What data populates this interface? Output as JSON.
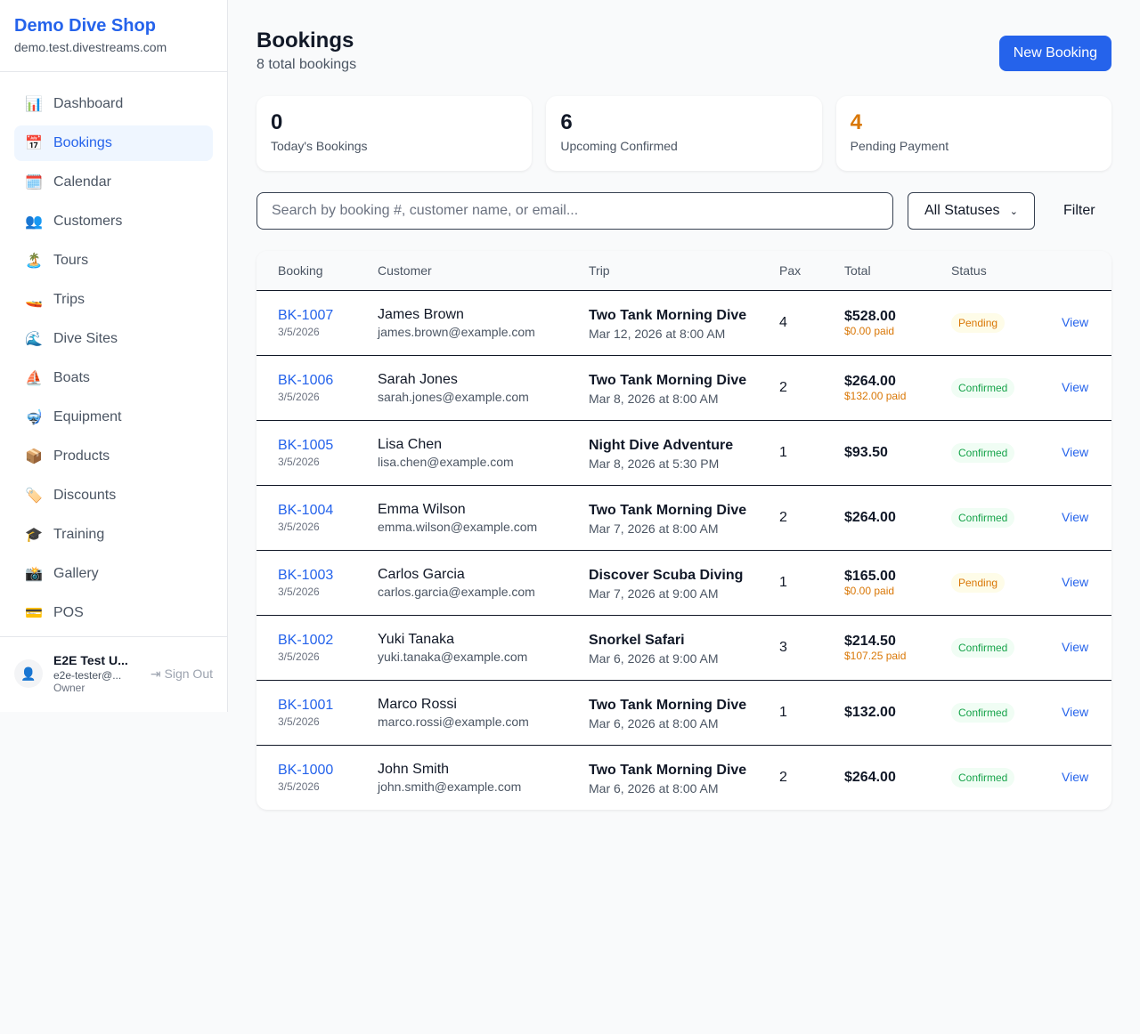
{
  "sidebar": {
    "brand": "Demo Dive Shop",
    "url": "demo.test.divestreams.com",
    "items": [
      {
        "label": "Dashboard",
        "icon": "📊",
        "active": false
      },
      {
        "label": "Bookings",
        "icon": "📅",
        "active": true
      },
      {
        "label": "Calendar",
        "icon": "🗓️",
        "active": false
      },
      {
        "label": "Customers",
        "icon": "👥",
        "active": false
      },
      {
        "label": "Tours",
        "icon": "🏝️",
        "active": false
      },
      {
        "label": "Trips",
        "icon": "🚤",
        "active": false
      },
      {
        "label": "Dive Sites",
        "icon": "🌊",
        "active": false
      },
      {
        "label": "Boats",
        "icon": "⛵",
        "active": false
      },
      {
        "label": "Equipment",
        "icon": "🤿",
        "active": false
      },
      {
        "label": "Products",
        "icon": "📦",
        "active": false
      },
      {
        "label": "Discounts",
        "icon": "🏷️",
        "active": false
      },
      {
        "label": "Training",
        "icon": "🎓",
        "active": false
      },
      {
        "label": "Gallery",
        "icon": "📸",
        "active": false
      },
      {
        "label": "POS",
        "icon": "💳",
        "active": false
      }
    ],
    "user": {
      "name": "E2E Test U...",
      "email": "e2e-tester@...",
      "role": "Owner",
      "sign_out": "Sign Out"
    }
  },
  "header": {
    "title": "Bookings",
    "subtitle": "8 total bookings",
    "new_button": "New Booking"
  },
  "stats": [
    {
      "value": "0",
      "label": "Today's Bookings",
      "color": "#111827"
    },
    {
      "value": "6",
      "label": "Upcoming Confirmed",
      "color": "#111827"
    },
    {
      "value": "4",
      "label": "Pending Payment",
      "color": "#d97706"
    }
  ],
  "filters": {
    "search_placeholder": "Search by booking #, customer name, or email...",
    "status": "All Statuses",
    "filter_button": "Filter"
  },
  "table": {
    "columns": [
      "Booking",
      "Customer",
      "Trip",
      "Pax",
      "Total",
      "Status",
      ""
    ],
    "rows": [
      {
        "id": "BK-1007",
        "date": "3/5/2026",
        "name": "James Brown",
        "email": "james.brown@example.com",
        "trip": "Two Tank Morning Dive",
        "trip_date": "Mar 12, 2026 at 8:00 AM",
        "pax": "4",
        "total": "$528.00",
        "paid": "$0.00 paid",
        "status": "Pending",
        "action": "View"
      },
      {
        "id": "BK-1006",
        "date": "3/5/2026",
        "name": "Sarah Jones",
        "email": "sarah.jones@example.com",
        "trip": "Two Tank Morning Dive",
        "trip_date": "Mar 8, 2026 at 8:00 AM",
        "pax": "2",
        "total": "$264.00",
        "paid": "$132.00 paid",
        "status": "Confirmed",
        "action": "View"
      },
      {
        "id": "BK-1005",
        "date": "3/5/2026",
        "name": "Lisa Chen",
        "email": "lisa.chen@example.com",
        "trip": "Night Dive Adventure",
        "trip_date": "Mar 8, 2026 at 5:30 PM",
        "pax": "1",
        "total": "$93.50",
        "paid": "",
        "status": "Confirmed",
        "action": "View"
      },
      {
        "id": "BK-1004",
        "date": "3/5/2026",
        "name": "Emma Wilson",
        "email": "emma.wilson@example.com",
        "trip": "Two Tank Morning Dive",
        "trip_date": "Mar 7, 2026 at 8:00 AM",
        "pax": "2",
        "total": "$264.00",
        "paid": "",
        "status": "Confirmed",
        "action": "View"
      },
      {
        "id": "BK-1003",
        "date": "3/5/2026",
        "name": "Carlos Garcia",
        "email": "carlos.garcia@example.com",
        "trip": "Discover Scuba Diving",
        "trip_date": "Mar 7, 2026 at 9:00 AM",
        "pax": "1",
        "total": "$165.00",
        "paid": "$0.00 paid",
        "status": "Pending",
        "action": "View"
      },
      {
        "id": "BK-1002",
        "date": "3/5/2026",
        "name": "Yuki Tanaka",
        "email": "yuki.tanaka@example.com",
        "trip": "Snorkel Safari",
        "trip_date": "Mar 6, 2026 at 9:00 AM",
        "pax": "3",
        "total": "$214.50",
        "paid": "$107.25 paid",
        "status": "Confirmed",
        "action": "View"
      },
      {
        "id": "BK-1001",
        "date": "3/5/2026",
        "name": "Marco Rossi",
        "email": "marco.rossi@example.com",
        "trip": "Two Tank Morning Dive",
        "trip_date": "Mar 6, 2026 at 8:00 AM",
        "pax": "1",
        "total": "$132.00",
        "paid": "",
        "status": "Confirmed",
        "action": "View"
      },
      {
        "id": "BK-1000",
        "date": "3/5/2026",
        "name": "John Smith",
        "email": "john.smith@example.com",
        "trip": "Two Tank Morning Dive",
        "trip_date": "Mar 6, 2026 at 8:00 AM",
        "pax": "2",
        "total": "$264.00",
        "paid": "",
        "status": "Confirmed",
        "action": "View"
      }
    ]
  },
  "status_colors": {
    "Pending": {
      "bg": "#fefce8",
      "fg": "#d97706"
    },
    "Confirmed": {
      "bg": "#f0fdf4",
      "fg": "#16a34a"
    }
  }
}
